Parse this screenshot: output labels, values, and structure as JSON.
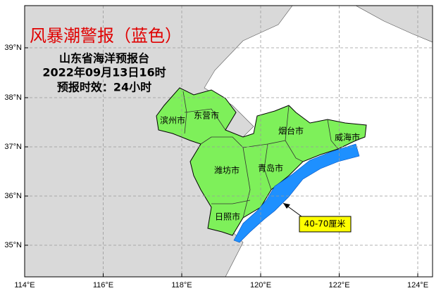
{
  "title": "风暴潮警报（蓝色）",
  "issuer": "山东省海洋预报台",
  "issue_time": "2022年09月13日16时",
  "lead_time": "预报时效：24小时",
  "regions": [
    "滨州市",
    "东营市",
    "烟台市",
    "威海市",
    "潍坊市",
    "青岛市",
    "日照市"
  ],
  "annotation": "40-70厘米",
  "lon_ticks": [
    "114°E",
    "116°E",
    "118°E",
    "120°E",
    "122°E",
    "124°E"
  ],
  "lat_ticks": [
    "39°N",
    "38°N",
    "37°N",
    "36°N",
    "35°N"
  ]
}
